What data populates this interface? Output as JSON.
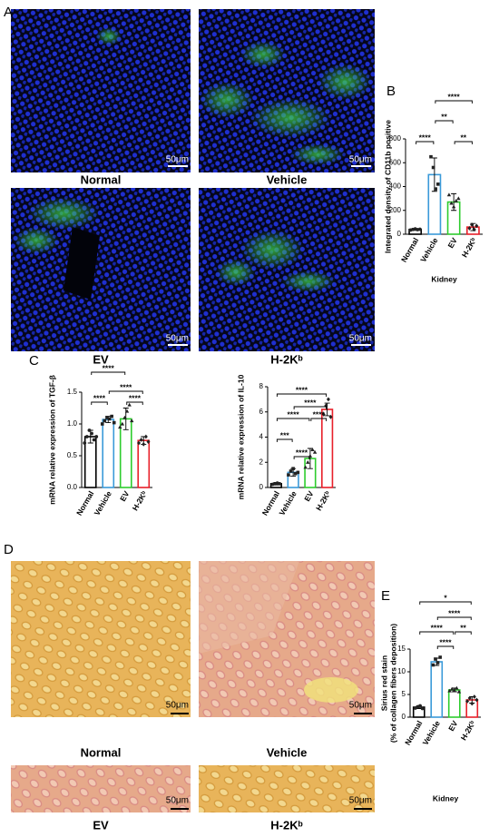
{
  "panel_labels": [
    "A",
    "B",
    "C",
    "D",
    "E"
  ],
  "panel_A": {
    "images": [
      "Normal",
      "Vehicle",
      "EV",
      "H-2Kᵇ"
    ],
    "scale_bar": "50μm"
  },
  "panel_D": {
    "images": [
      "Normal",
      "Vehicle",
      "EV",
      "H-2Kᵇ"
    ],
    "scale_bar": "50μm"
  },
  "chart_data": [
    {
      "type": "bar",
      "y_label": "Integrated density of CD11b positive",
      "x_label": "Kidney",
      "categories": [
        "Normal",
        "Vehicle",
        "EV",
        "H-2Kᵇ"
      ],
      "values": [
        40,
        500,
        270,
        60
      ],
      "errors": [
        8,
        140,
        70,
        30
      ],
      "points": [
        [
          35,
          40,
          45,
          38,
          42
        ],
        [
          650,
          560,
          380,
          420
        ],
        [
          330,
          260,
          230,
          280,
          300
        ],
        [
          50,
          80,
          40,
          70
        ]
      ],
      "colors": [
        "#000000",
        "#3a9ad9",
        "#2ecc2e",
        "#e8202a"
      ],
      "ylim": [
        0,
        800
      ],
      "yticks": [
        0,
        200,
        400,
        600,
        800
      ],
      "annotations": [
        {
          "text": "****",
          "from": "Normal",
          "to": "Vehicle"
        },
        {
          "text": "**",
          "from": "Vehicle",
          "to": "EV"
        },
        {
          "text": "**",
          "from": "EV",
          "to": "H-2Kᵇ"
        },
        {
          "text": "****",
          "from": "Vehicle",
          "to": "H-2Kᵇ"
        }
      ]
    },
    {
      "type": "bar",
      "y_label": "mRNA relative expression of TGF-β",
      "categories": [
        "Normal",
        "Vehicle",
        "EV",
        "H-2Kᵇ"
      ],
      "values": [
        0.8,
        1.07,
        1.08,
        0.74
      ],
      "errors": [
        0.1,
        0.05,
        0.17,
        0.06
      ],
      "points": [
        [
          0.7,
          0.8,
          0.9,
          0.85,
          0.75,
          0.8
        ],
        [
          1.0,
          1.05,
          1.1,
          1.08,
          1.12,
          1.02
        ],
        [
          0.95,
          1.0,
          1.1,
          1.2,
          1.3,
          1.05
        ],
        [
          0.7,
          0.75,
          0.68,
          0.8,
          0.72
        ]
      ],
      "colors": [
        "#000000",
        "#3a9ad9",
        "#2ecc2e",
        "#e8202a"
      ],
      "ylim": [
        0,
        1.5
      ],
      "yticks": [
        {
          "value": 0,
          "label": "0.0"
        },
        0.5,
        {
          "value": 1,
          "label": "1.0"
        },
        1.5
      ],
      "annotations": [
        {
          "text": "****",
          "from": "Normal",
          "to": "EV"
        },
        {
          "text": "****",
          "from": "Vehicle",
          "to": "H-2Kᵇ"
        },
        {
          "text": "****",
          "from": "Normal",
          "to": "Vehicle"
        },
        {
          "text": "****",
          "from": "EV",
          "to": "H-2Kᵇ"
        }
      ]
    },
    {
      "type": "bar",
      "y_label": "mRNA relative expression of IL-10",
      "categories": [
        "Normal",
        "Vehicle",
        "EV",
        "H-2Kᵇ"
      ],
      "values": [
        0.3,
        1.2,
        2.3,
        6.2
      ],
      "errors": [
        0.1,
        0.3,
        0.8,
        0.5
      ],
      "points": [
        [
          0.25,
          0.3,
          0.35,
          0.3
        ],
        [
          1.0,
          1.3,
          1.5,
          1.1,
          1.2
        ],
        [
          1.6,
          2.0,
          2.5,
          3.0,
          2.8
        ],
        [
          5.8,
          6.5,
          7.0,
          5.6
        ]
      ],
      "colors": [
        "#000000",
        "#3a9ad9",
        "#2ecc2e",
        "#e8202a"
      ],
      "ylim": [
        0,
        8
      ],
      "yticks": [
        0,
        2,
        4,
        6,
        8
      ],
      "annotations": [
        {
          "text": "****",
          "from": "Normal",
          "to": "H-2Kᵇ"
        },
        {
          "text": "****",
          "from": "Vehicle",
          "to": "H-2Kᵇ"
        },
        {
          "text": "****",
          "from": "Normal",
          "to": "EV"
        },
        {
          "text": "****",
          "from": "EV",
          "to": "H-2Kᵇ"
        },
        {
          "text": "***",
          "from": "Normal",
          "to": "Vehicle"
        },
        {
          "text": "****",
          "from": "Vehicle",
          "to": "EV"
        }
      ]
    },
    {
      "type": "bar",
      "y_label": "Sirius red stain",
      "y_sublabel": "(% of collagen fibers deposition)",
      "x_label": "Kidney",
      "categories": [
        "Normal",
        "Vehicle",
        "EV",
        "H-2Kᵇ"
      ],
      "values": [
        2.2,
        12.2,
        6,
        3.8
      ],
      "errors": [
        0.3,
        0.8,
        0.4,
        0.7
      ],
      "points": [
        [
          2.0,
          2.3,
          2.5,
          1.9
        ],
        [
          11.5,
          12.8,
          12.0,
          13.2
        ],
        [
          5.8,
          6.2,
          5.9,
          6.4,
          5.6
        ],
        [
          3.5,
          4.2,
          3.0,
          4.5,
          3.8
        ]
      ],
      "colors": [
        "#000000",
        "#3a9ad9",
        "#2ecc2e",
        "#e8202a"
      ],
      "ylim": [
        0,
        15
      ],
      "yticks": [
        0,
        5,
        10,
        15
      ],
      "annotations": [
        {
          "text": "*",
          "from": "Normal",
          "to": "H-2Kᵇ"
        },
        {
          "text": "****",
          "from": "Vehicle",
          "to": "H-2Kᵇ"
        },
        {
          "text": "****",
          "from": "Normal",
          "to": "EV"
        },
        {
          "text": "**",
          "from": "EV",
          "to": "H-2Kᵇ"
        },
        {
          "text": "****",
          "from": "Vehicle",
          "to": "EV"
        }
      ]
    }
  ]
}
